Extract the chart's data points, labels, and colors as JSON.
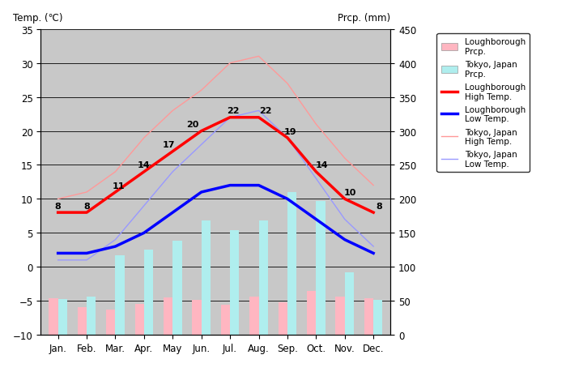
{
  "months": [
    "Jan.",
    "Feb.",
    "Mar.",
    "Apr.",
    "May",
    "Jun.",
    "Jul.",
    "Aug.",
    "Sep.",
    "Oct.",
    "Nov.",
    "Dec."
  ],
  "loughborough_high": [
    8,
    8,
    11,
    14,
    17,
    20,
    22,
    22,
    19,
    14,
    10,
    8
  ],
  "loughborough_low": [
    2,
    2,
    3,
    5,
    8,
    11,
    12,
    12,
    10,
    7,
    4,
    2
  ],
  "tokyo_high": [
    10,
    11,
    14,
    19,
    23,
    26,
    30,
    31,
    27,
    21,
    16,
    12
  ],
  "tokyo_low": [
    1,
    1,
    4,
    9,
    14,
    18,
    22,
    23,
    19,
    13,
    7,
    3
  ],
  "loughborough_prcp_mm": [
    54,
    40,
    37,
    45,
    55,
    51,
    44,
    56,
    48,
    65,
    56,
    54
  ],
  "tokyo_prcp_mm": [
    52,
    56,
    117,
    125,
    138,
    168,
    154,
    168,
    210,
    197,
    92,
    51
  ],
  "loughborough_bar_color": "#FFB6C1",
  "tokyo_bar_color": "#AFEEEE",
  "loughborough_high_color": "#FF0000",
  "loughborough_low_color": "#0000FF",
  "tokyo_high_color": "#FF9999",
  "tokyo_low_color": "#9999FF",
  "background_color": "#C8C8C8",
  "text_left": "Temp. (℃)",
  "text_right": "Prcp. (mm)",
  "temp_ylim": [
    -10,
    35
  ],
  "prcp_ylim": [
    0,
    450
  ],
  "temp_yticks": [
    -10,
    -5,
    0,
    5,
    10,
    15,
    20,
    25,
    30,
    35
  ],
  "prcp_yticks": [
    0,
    50,
    100,
    150,
    200,
    250,
    300,
    350,
    400,
    450
  ],
  "loug_high_labels_show": [
    true,
    true,
    true,
    true,
    true,
    true,
    true,
    true,
    true,
    true,
    true,
    true
  ],
  "figsize": [
    7.2,
    4.6
  ],
  "dpi": 100
}
